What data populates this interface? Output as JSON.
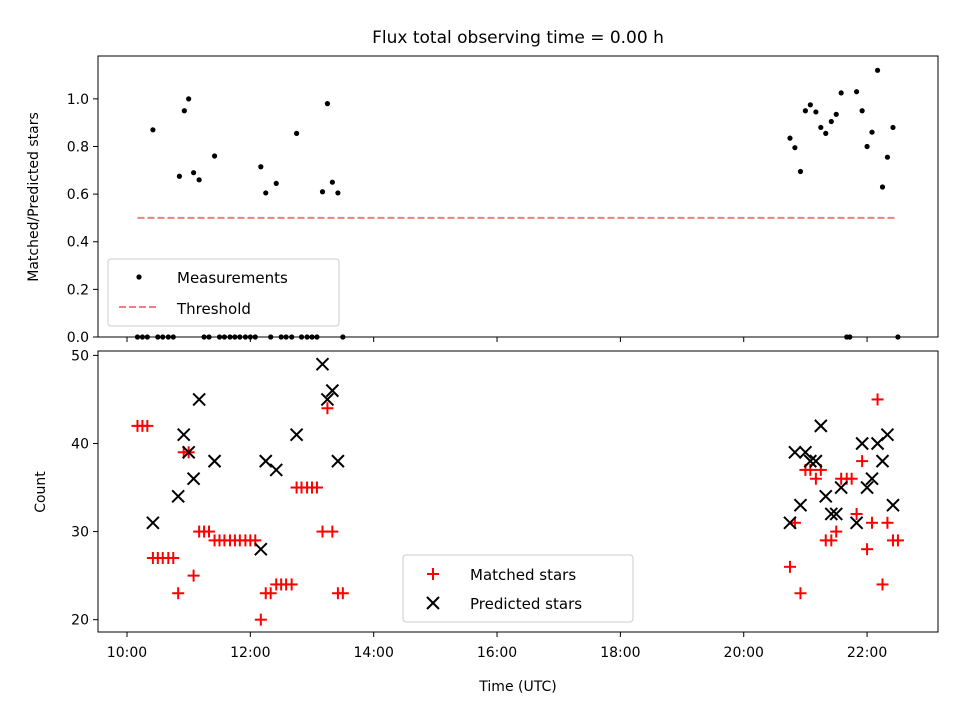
{
  "title": "Flux total observing time = 0.00 h",
  "colors": {
    "measurement": "#000000",
    "threshold": "#f08080",
    "matched": "#ff0000",
    "predicted": "#000000"
  },
  "chart_data": [
    {
      "type": "scatter",
      "ylabel": "Matched/Predicted stars",
      "xlim": [
        9.53,
        23.15
      ],
      "ylim": [
        0,
        1.18
      ],
      "yticks": [
        0.0,
        0.2,
        0.4,
        0.6,
        0.8,
        1.0
      ],
      "ytick_labels": [
        "0.0",
        "0.2",
        "0.4",
        "0.6",
        "0.8",
        "1.0"
      ],
      "xticks": [
        10,
        12,
        14,
        16,
        18,
        20,
        22
      ],
      "legend_position": "lower-left",
      "legend": {
        "measurements": "Measurements",
        "threshold": "Threshold"
      },
      "threshold": {
        "y": 0.5,
        "x": [
          10.17,
          22.45
        ]
      },
      "series": [
        {
          "name": "Measurements",
          "points": [
            [
              10.17,
              0
            ],
            [
              10.25,
              0
            ],
            [
              10.33,
              0
            ],
            [
              10.42,
              0.87
            ],
            [
              10.5,
              0
            ],
            [
              10.58,
              0
            ],
            [
              10.67,
              0
            ],
            [
              10.75,
              0
            ],
            [
              10.85,
              0.675
            ],
            [
              10.93,
              0.95
            ],
            [
              11.0,
              1.0
            ],
            [
              11.08,
              0.69
            ],
            [
              11.17,
              0.66
            ],
            [
              11.25,
              0
            ],
            [
              11.33,
              0
            ],
            [
              11.42,
              0.76
            ],
            [
              11.5,
              0
            ],
            [
              11.58,
              0
            ],
            [
              11.67,
              0
            ],
            [
              11.75,
              0
            ],
            [
              11.83,
              0
            ],
            [
              11.92,
              0
            ],
            [
              12.0,
              0
            ],
            [
              12.08,
              0
            ],
            [
              12.17,
              0.715
            ],
            [
              12.25,
              0.605
            ],
            [
              12.33,
              0
            ],
            [
              12.42,
              0.645
            ],
            [
              12.5,
              0
            ],
            [
              12.58,
              0
            ],
            [
              12.67,
              0
            ],
            [
              12.75,
              0.855
            ],
            [
              12.83,
              0
            ],
            [
              12.92,
              0
            ],
            [
              13.0,
              0
            ],
            [
              13.08,
              0
            ],
            [
              13.17,
              0.61
            ],
            [
              13.25,
              0.98
            ],
            [
              13.33,
              0.65
            ],
            [
              13.42,
              0.605
            ],
            [
              13.5,
              0
            ],
            [
              20.75,
              0.835
            ],
            [
              20.83,
              0.795
            ],
            [
              20.92,
              0.695
            ],
            [
              21.0,
              0.95
            ],
            [
              21.08,
              0.975
            ],
            [
              21.17,
              0.945
            ],
            [
              21.25,
              0.88
            ],
            [
              21.33,
              0.855
            ],
            [
              21.42,
              0.905
            ],
            [
              21.5,
              0.935
            ],
            [
              21.58,
              1.025
            ],
            [
              21.67,
              0
            ],
            [
              21.72,
              0
            ],
            [
              21.83,
              1.03
            ],
            [
              21.92,
              0.95
            ],
            [
              22.0,
              0.8
            ],
            [
              22.08,
              0.86
            ],
            [
              22.17,
              1.12
            ],
            [
              22.25,
              0.63
            ],
            [
              22.33,
              0.755
            ],
            [
              22.42,
              0.88
            ],
            [
              22.5,
              0
            ]
          ]
        }
      ]
    },
    {
      "type": "scatter",
      "xlabel": "Time (UTC)",
      "ylabel": "Count",
      "xlim": [
        9.53,
        23.15
      ],
      "ylim": [
        18.6,
        50.5
      ],
      "yticks": [
        20,
        30,
        40,
        50
      ],
      "ytick_labels": [
        "20",
        "30",
        "40",
        "50"
      ],
      "xticks": [
        10,
        12,
        14,
        16,
        18,
        20,
        22
      ],
      "xtick_labels": [
        "10:00",
        "12:00",
        "14:00",
        "16:00",
        "18:00",
        "20:00",
        "22:00"
      ],
      "legend_position": "lower-center",
      "series": [
        {
          "name": "Matched stars",
          "points": [
            [
              10.17,
              42
            ],
            [
              10.25,
              42
            ],
            [
              10.33,
              42
            ],
            [
              10.42,
              27
            ],
            [
              10.5,
              27
            ],
            [
              10.58,
              27
            ],
            [
              10.67,
              27
            ],
            [
              10.75,
              27
            ],
            [
              10.83,
              23
            ],
            [
              10.92,
              39
            ],
            [
              11.0,
              39
            ],
            [
              11.08,
              25
            ],
            [
              11.17,
              30
            ],
            [
              11.25,
              30
            ],
            [
              11.33,
              30
            ],
            [
              11.42,
              29
            ],
            [
              11.5,
              29
            ],
            [
              11.58,
              29
            ],
            [
              11.67,
              29
            ],
            [
              11.75,
              29
            ],
            [
              11.83,
              29
            ],
            [
              11.92,
              29
            ],
            [
              12.0,
              29
            ],
            [
              12.08,
              29
            ],
            [
              12.17,
              20
            ],
            [
              12.25,
              23
            ],
            [
              12.33,
              23
            ],
            [
              12.42,
              24
            ],
            [
              12.5,
              24
            ],
            [
              12.58,
              24
            ],
            [
              12.67,
              24
            ],
            [
              12.75,
              35
            ],
            [
              12.83,
              35
            ],
            [
              12.92,
              35
            ],
            [
              13.0,
              35
            ],
            [
              13.08,
              35
            ],
            [
              13.17,
              30
            ],
            [
              13.25,
              44
            ],
            [
              13.33,
              30
            ],
            [
              13.42,
              23
            ],
            [
              13.5,
              23
            ],
            [
              20.75,
              26
            ],
            [
              20.83,
              31
            ],
            [
              20.92,
              23
            ],
            [
              21.0,
              37
            ],
            [
              21.08,
              37
            ],
            [
              21.17,
              36
            ],
            [
              21.25,
              37
            ],
            [
              21.33,
              29
            ],
            [
              21.42,
              29
            ],
            [
              21.5,
              30
            ],
            [
              21.58,
              36
            ],
            [
              21.67,
              36
            ],
            [
              21.75,
              36
            ],
            [
              21.83,
              32
            ],
            [
              21.92,
              38
            ],
            [
              22.0,
              28
            ],
            [
              22.08,
              31
            ],
            [
              22.17,
              45
            ],
            [
              22.25,
              24
            ],
            [
              22.33,
              31
            ],
            [
              22.42,
              29
            ],
            [
              22.5,
              29
            ]
          ]
        },
        {
          "name": "Predicted stars",
          "points": [
            [
              10.42,
              31
            ],
            [
              10.83,
              34
            ],
            [
              10.92,
              41
            ],
            [
              11.0,
              39
            ],
            [
              11.08,
              36
            ],
            [
              11.17,
              45
            ],
            [
              11.42,
              38
            ],
            [
              12.17,
              28
            ],
            [
              12.25,
              38
            ],
            [
              12.42,
              37
            ],
            [
              12.75,
              41
            ],
            [
              13.17,
              49
            ],
            [
              13.25,
              45
            ],
            [
              13.33,
              46
            ],
            [
              13.42,
              38
            ],
            [
              20.75,
              31
            ],
            [
              20.83,
              39
            ],
            [
              20.92,
              33
            ],
            [
              21.0,
              39
            ],
            [
              21.08,
              38
            ],
            [
              21.17,
              38
            ],
            [
              21.25,
              42
            ],
            [
              21.33,
              34
            ],
            [
              21.42,
              32
            ],
            [
              21.5,
              32
            ],
            [
              21.58,
              35
            ],
            [
              21.83,
              31
            ],
            [
              21.92,
              40
            ],
            [
              22.0,
              35
            ],
            [
              22.08,
              36
            ],
            [
              22.17,
              40
            ],
            [
              22.25,
              38
            ],
            [
              22.33,
              41
            ],
            [
              22.42,
              33
            ]
          ]
        }
      ]
    }
  ]
}
